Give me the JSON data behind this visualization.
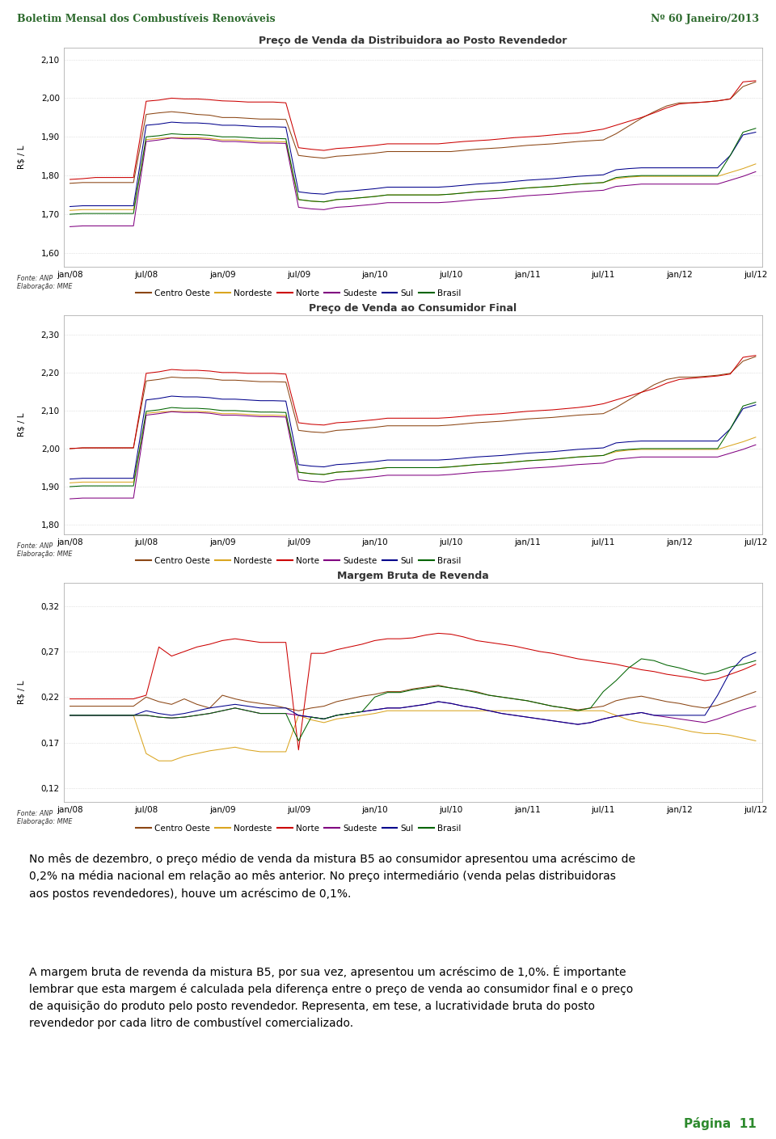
{
  "header_left": "Boletim Mensal dos Combustíveis Renováveis",
  "header_right": "Nº 60 Janeiro/2013",
  "header_bg": "#ffffff",
  "header_text_color": "#2d6a2d",
  "stripe1_color": "#4a8f3f",
  "stripe2_color": "#1e5c1e",
  "page_bg": "#ffffff",
  "chart1_title": "Preço de Venda da Distribuidora ao Posto Revendedor",
  "chart2_title": "Preço de Venda ao Consumidor Final",
  "chart3_title": "Margem Bruta de Revenda",
  "ylabel": "R$ / L",
  "source_text": "Fonte: ANP\nElaboração: MME",
  "legend_labels": [
    "Centro Oeste",
    "Nordeste",
    "Norte",
    "Sudeste",
    "Sul",
    "Brasil"
  ],
  "line_colors": [
    "#8B4513",
    "#DAA520",
    "#CC0000",
    "#800080",
    "#00008B",
    "#006400"
  ],
  "chart1_yticks": [
    1.6,
    1.7,
    1.8,
    1.9,
    2.0,
    2.1
  ],
  "chart1_ylim": [
    1.565,
    2.13
  ],
  "chart2_yticks": [
    1.8,
    1.9,
    2.0,
    2.1,
    2.2,
    2.3
  ],
  "chart2_ylim": [
    1.775,
    2.35
  ],
  "chart3_yticks": [
    0.12,
    0.17,
    0.22,
    0.27,
    0.32
  ],
  "chart3_ylim": [
    0.105,
    0.345
  ],
  "xtick_labels": [
    "jan/08",
    "jul/08",
    "jan/09",
    "jul/09",
    "jan/10",
    "jul/10",
    "jan/11",
    "jul/11",
    "jan/12",
    "jul/12"
  ],
  "xtick_positions": [
    0,
    6,
    12,
    18,
    24,
    30,
    36,
    42,
    48,
    54
  ],
  "text_block1_lines": [
    "No mês de dezembro, o preço médio de venda da mistura B5 ao consumidor apresentou uma acréscimo de",
    "0,2% na média nacional em relação ao mês anterior. No preço intermediário (venda pelas distribuidoras",
    "aos postos revendedores), houve um acréscimo de 0,1%."
  ],
  "text_block2_lines": [
    "A margem bruta de revenda da mistura B5, por sua vez, apresentou um acréscimo de 1,0%. É importante",
    "lembrar que esta margem é calculada pela diferença entre o preço de venda ao consumidor final e o preço",
    "de aquisição do produto pelo posto revendedor. Representa, em tese, a lucratividade bruta do posto",
    "revendedor por cada litro de combustível comercializado."
  ],
  "page_num": "Página  11",
  "chart1_data": {
    "norte": [
      1.79,
      1.792,
      1.795,
      1.795,
      1.795,
      1.795,
      1.992,
      1.995,
      2.0,
      1.998,
      1.998,
      1.996,
      1.993,
      1.992,
      1.99,
      1.99,
      1.99,
      1.988,
      1.872,
      1.868,
      1.865,
      1.87,
      1.872,
      1.875,
      1.878,
      1.882,
      1.882,
      1.882,
      1.882,
      1.882,
      1.885,
      1.888,
      1.89,
      1.892,
      1.895,
      1.898,
      1.9,
      1.902,
      1.905,
      1.908,
      1.91,
      1.915,
      1.92,
      1.93,
      1.94,
      1.95,
      1.962,
      1.975,
      1.985,
      1.988,
      1.99,
      1.993,
      1.998,
      2.042,
      2.045
    ],
    "centro_oeste": [
      1.78,
      1.782,
      1.782,
      1.782,
      1.782,
      1.782,
      1.958,
      1.962,
      1.965,
      1.962,
      1.958,
      1.956,
      1.95,
      1.95,
      1.948,
      1.946,
      1.946,
      1.945,
      1.852,
      1.848,
      1.845,
      1.85,
      1.852,
      1.855,
      1.858,
      1.862,
      1.862,
      1.862,
      1.862,
      1.862,
      1.862,
      1.865,
      1.868,
      1.87,
      1.872,
      1.875,
      1.878,
      1.88,
      1.882,
      1.885,
      1.888,
      1.89,
      1.892,
      1.908,
      1.928,
      1.948,
      1.965,
      1.98,
      1.988,
      1.988,
      1.99,
      1.993,
      1.998,
      2.03,
      2.042
    ],
    "sul": [
      1.72,
      1.722,
      1.722,
      1.722,
      1.722,
      1.722,
      1.93,
      1.933,
      1.938,
      1.936,
      1.936,
      1.934,
      1.93,
      1.93,
      1.928,
      1.926,
      1.926,
      1.925,
      1.758,
      1.754,
      1.752,
      1.758,
      1.76,
      1.763,
      1.766,
      1.77,
      1.77,
      1.77,
      1.77,
      1.77,
      1.772,
      1.775,
      1.778,
      1.78,
      1.782,
      1.785,
      1.788,
      1.79,
      1.792,
      1.795,
      1.798,
      1.8,
      1.802,
      1.815,
      1.818,
      1.82,
      1.82,
      1.82,
      1.82,
      1.82,
      1.82,
      1.82,
      1.852,
      1.905,
      1.912
    ],
    "brasil": [
      1.7,
      1.702,
      1.702,
      1.702,
      1.702,
      1.702,
      1.9,
      1.903,
      1.908,
      1.906,
      1.906,
      1.904,
      1.9,
      1.9,
      1.898,
      1.896,
      1.896,
      1.895,
      1.738,
      1.734,
      1.732,
      1.738,
      1.74,
      1.743,
      1.746,
      1.75,
      1.75,
      1.75,
      1.75,
      1.75,
      1.752,
      1.755,
      1.758,
      1.76,
      1.762,
      1.765,
      1.768,
      1.77,
      1.772,
      1.775,
      1.778,
      1.78,
      1.782,
      1.795,
      1.798,
      1.8,
      1.8,
      1.8,
      1.8,
      1.8,
      1.8,
      1.8,
      1.852,
      1.912,
      1.922
    ],
    "nordeste": [
      1.71,
      1.712,
      1.712,
      1.712,
      1.712,
      1.712,
      1.893,
      1.896,
      1.898,
      1.898,
      1.898,
      1.896,
      1.892,
      1.892,
      1.89,
      1.888,
      1.888,
      1.887,
      1.738,
      1.734,
      1.732,
      1.738,
      1.74,
      1.743,
      1.746,
      1.75,
      1.75,
      1.75,
      1.75,
      1.75,
      1.752,
      1.755,
      1.758,
      1.76,
      1.762,
      1.765,
      1.768,
      1.77,
      1.772,
      1.775,
      1.778,
      1.78,
      1.782,
      1.792,
      1.796,
      1.798,
      1.798,
      1.798,
      1.798,
      1.798,
      1.798,
      1.798,
      1.808,
      1.818,
      1.83
    ],
    "sudeste": [
      1.668,
      1.67,
      1.67,
      1.67,
      1.67,
      1.67,
      1.888,
      1.892,
      1.897,
      1.895,
      1.895,
      1.893,
      1.888,
      1.888,
      1.886,
      1.884,
      1.884,
      1.883,
      1.718,
      1.714,
      1.712,
      1.718,
      1.72,
      1.723,
      1.726,
      1.73,
      1.73,
      1.73,
      1.73,
      1.73,
      1.732,
      1.735,
      1.738,
      1.74,
      1.742,
      1.745,
      1.748,
      1.75,
      1.752,
      1.755,
      1.758,
      1.76,
      1.762,
      1.772,
      1.775,
      1.778,
      1.778,
      1.778,
      1.778,
      1.778,
      1.778,
      1.778,
      1.788,
      1.798,
      1.81
    ]
  },
  "chart2_data": {
    "norte": [
      2.0,
      2.002,
      2.002,
      2.002,
      2.002,
      2.002,
      2.198,
      2.202,
      2.208,
      2.206,
      2.206,
      2.204,
      2.2,
      2.2,
      2.198,
      2.198,
      2.198,
      2.196,
      2.068,
      2.064,
      2.062,
      2.068,
      2.07,
      2.073,
      2.076,
      2.08,
      2.08,
      2.08,
      2.08,
      2.08,
      2.082,
      2.085,
      2.088,
      2.09,
      2.092,
      2.095,
      2.098,
      2.1,
      2.102,
      2.105,
      2.108,
      2.112,
      2.118,
      2.128,
      2.138,
      2.148,
      2.158,
      2.172,
      2.182,
      2.185,
      2.188,
      2.191,
      2.196,
      2.24,
      2.245
    ],
    "centro_oeste": [
      2.0,
      2.002,
      2.002,
      2.002,
      2.002,
      2.002,
      2.178,
      2.182,
      2.188,
      2.186,
      2.186,
      2.184,
      2.18,
      2.18,
      2.178,
      2.176,
      2.176,
      2.175,
      2.048,
      2.044,
      2.042,
      2.048,
      2.05,
      2.053,
      2.056,
      2.06,
      2.06,
      2.06,
      2.06,
      2.06,
      2.062,
      2.065,
      2.068,
      2.07,
      2.072,
      2.075,
      2.078,
      2.08,
      2.082,
      2.085,
      2.088,
      2.09,
      2.092,
      2.108,
      2.128,
      2.148,
      2.168,
      2.182,
      2.188,
      2.188,
      2.19,
      2.193,
      2.198,
      2.23,
      2.242
    ],
    "sul": [
      1.92,
      1.922,
      1.922,
      1.922,
      1.922,
      1.922,
      2.128,
      2.132,
      2.138,
      2.136,
      2.136,
      2.134,
      2.13,
      2.13,
      2.128,
      2.126,
      2.126,
      2.125,
      1.958,
      1.954,
      1.952,
      1.958,
      1.96,
      1.963,
      1.966,
      1.97,
      1.97,
      1.97,
      1.97,
      1.97,
      1.972,
      1.975,
      1.978,
      1.98,
      1.982,
      1.985,
      1.988,
      1.99,
      1.992,
      1.995,
      1.998,
      2.0,
      2.002,
      2.015,
      2.018,
      2.02,
      2.02,
      2.02,
      2.02,
      2.02,
      2.02,
      2.02,
      2.052,
      2.105,
      2.115
    ],
    "brasil": [
      1.9,
      1.902,
      1.902,
      1.902,
      1.902,
      1.902,
      2.098,
      2.102,
      2.108,
      2.106,
      2.106,
      2.104,
      2.1,
      2.1,
      2.098,
      2.096,
      2.096,
      2.095,
      1.938,
      1.934,
      1.932,
      1.938,
      1.94,
      1.943,
      1.946,
      1.95,
      1.95,
      1.95,
      1.95,
      1.95,
      1.952,
      1.955,
      1.958,
      1.96,
      1.962,
      1.965,
      1.968,
      1.97,
      1.972,
      1.975,
      1.978,
      1.98,
      1.982,
      1.995,
      1.998,
      2.0,
      2.0,
      2.0,
      2.0,
      2.0,
      2.0,
      2.0,
      2.052,
      2.112,
      2.122
    ],
    "nordeste": [
      1.91,
      1.912,
      1.912,
      1.912,
      1.912,
      1.912,
      2.093,
      2.096,
      2.098,
      2.098,
      2.098,
      2.096,
      2.092,
      2.092,
      2.09,
      2.088,
      2.088,
      2.087,
      1.938,
      1.934,
      1.932,
      1.938,
      1.94,
      1.943,
      1.946,
      1.95,
      1.95,
      1.95,
      1.95,
      1.95,
      1.952,
      1.955,
      1.958,
      1.96,
      1.962,
      1.965,
      1.968,
      1.97,
      1.972,
      1.975,
      1.978,
      1.98,
      1.982,
      1.992,
      1.996,
      1.998,
      1.998,
      1.998,
      1.998,
      1.998,
      1.998,
      1.998,
      2.008,
      2.018,
      2.03
    ],
    "sudeste": [
      1.868,
      1.87,
      1.87,
      1.87,
      1.87,
      1.87,
      2.088,
      2.092,
      2.097,
      2.095,
      2.095,
      2.093,
      2.088,
      2.088,
      2.086,
      2.084,
      2.084,
      2.083,
      1.918,
      1.914,
      1.912,
      1.918,
      1.92,
      1.923,
      1.926,
      1.93,
      1.93,
      1.93,
      1.93,
      1.93,
      1.932,
      1.935,
      1.938,
      1.94,
      1.942,
      1.945,
      1.948,
      1.95,
      1.952,
      1.955,
      1.958,
      1.96,
      1.962,
      1.972,
      1.975,
      1.978,
      1.978,
      1.978,
      1.978,
      1.978,
      1.978,
      1.978,
      1.988,
      1.998,
      2.01
    ]
  },
  "chart3_data": {
    "norte": [
      0.218,
      0.218,
      0.218,
      0.218,
      0.218,
      0.218,
      0.222,
      0.275,
      0.265,
      0.27,
      0.275,
      0.278,
      0.282,
      0.284,
      0.282,
      0.28,
      0.28,
      0.28,
      0.162,
      0.268,
      0.268,
      0.272,
      0.275,
      0.278,
      0.282,
      0.284,
      0.284,
      0.285,
      0.288,
      0.29,
      0.289,
      0.286,
      0.282,
      0.28,
      0.278,
      0.276,
      0.273,
      0.27,
      0.268,
      0.265,
      0.262,
      0.26,
      0.258,
      0.256,
      0.253,
      0.25,
      0.248,
      0.245,
      0.243,
      0.241,
      0.238,
      0.24,
      0.245,
      0.25,
      0.256
    ],
    "brasil": [
      0.2,
      0.2,
      0.2,
      0.2,
      0.2,
      0.2,
      0.2,
      0.198,
      0.197,
      0.198,
      0.2,
      0.202,
      0.205,
      0.208,
      0.205,
      0.202,
      0.202,
      0.202,
      0.172,
      0.198,
      0.196,
      0.2,
      0.202,
      0.204,
      0.22,
      0.225,
      0.225,
      0.228,
      0.23,
      0.232,
      0.23,
      0.228,
      0.225,
      0.222,
      0.22,
      0.218,
      0.216,
      0.213,
      0.21,
      0.208,
      0.205,
      0.208,
      0.226,
      0.238,
      0.252,
      0.262,
      0.26,
      0.255,
      0.252,
      0.248,
      0.245,
      0.248,
      0.253,
      0.256,
      0.26
    ],
    "sudeste": [
      0.2,
      0.2,
      0.2,
      0.2,
      0.2,
      0.2,
      0.2,
      0.198,
      0.197,
      0.198,
      0.2,
      0.202,
      0.205,
      0.208,
      0.205,
      0.202,
      0.202,
      0.202,
      0.2,
      0.198,
      0.196,
      0.2,
      0.202,
      0.204,
      0.206,
      0.208,
      0.208,
      0.21,
      0.212,
      0.215,
      0.213,
      0.21,
      0.208,
      0.205,
      0.202,
      0.2,
      0.198,
      0.196,
      0.194,
      0.192,
      0.19,
      0.192,
      0.196,
      0.199,
      0.201,
      0.203,
      0.2,
      0.198,
      0.196,
      0.194,
      0.192,
      0.196,
      0.201,
      0.206,
      0.21
    ],
    "sul": [
      0.2,
      0.2,
      0.2,
      0.2,
      0.2,
      0.2,
      0.205,
      0.202,
      0.2,
      0.202,
      0.205,
      0.208,
      0.21,
      0.212,
      0.21,
      0.208,
      0.208,
      0.208,
      0.2,
      0.198,
      0.196,
      0.2,
      0.202,
      0.204,
      0.206,
      0.208,
      0.208,
      0.21,
      0.212,
      0.215,
      0.213,
      0.21,
      0.208,
      0.205,
      0.202,
      0.2,
      0.198,
      0.196,
      0.194,
      0.192,
      0.19,
      0.192,
      0.196,
      0.199,
      0.201,
      0.203,
      0.2,
      0.2,
      0.2,
      0.2,
      0.2,
      0.222,
      0.248,
      0.263,
      0.269
    ],
    "centro_oeste": [
      0.21,
      0.21,
      0.21,
      0.21,
      0.21,
      0.21,
      0.22,
      0.215,
      0.212,
      0.218,
      0.212,
      0.208,
      0.222,
      0.218,
      0.215,
      0.213,
      0.211,
      0.208,
      0.205,
      0.208,
      0.21,
      0.215,
      0.218,
      0.221,
      0.223,
      0.226,
      0.226,
      0.229,
      0.231,
      0.233,
      0.23,
      0.228,
      0.226,
      0.222,
      0.22,
      0.218,
      0.216,
      0.213,
      0.21,
      0.208,
      0.206,
      0.208,
      0.21,
      0.216,
      0.219,
      0.221,
      0.218,
      0.215,
      0.213,
      0.21,
      0.208,
      0.211,
      0.216,
      0.221,
      0.226
    ],
    "nordeste": [
      0.2,
      0.2,
      0.2,
      0.2,
      0.2,
      0.2,
      0.158,
      0.15,
      0.15,
      0.155,
      0.158,
      0.161,
      0.163,
      0.165,
      0.162,
      0.16,
      0.16,
      0.16,
      0.2,
      0.195,
      0.192,
      0.196,
      0.198,
      0.2,
      0.202,
      0.205,
      0.205,
      0.205,
      0.205,
      0.205,
      0.205,
      0.205,
      0.205,
      0.205,
      0.205,
      0.205,
      0.205,
      0.205,
      0.205,
      0.205,
      0.205,
      0.205,
      0.205,
      0.2,
      0.195,
      0.192,
      0.19,
      0.188,
      0.185,
      0.182,
      0.18,
      0.18,
      0.178,
      0.175,
      0.172
    ]
  }
}
